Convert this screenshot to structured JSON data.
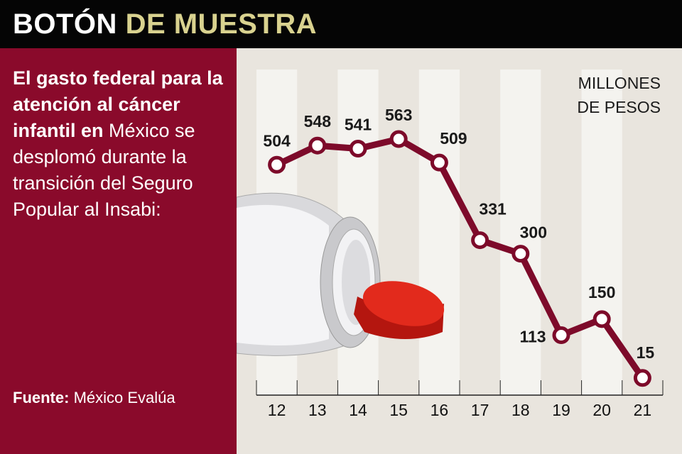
{
  "header": {
    "title_part1": "BOTÓN",
    "title_part2": "DE MUESTRA"
  },
  "intro": {
    "bold": "El gasto federal para la atención al cáncer infantil en",
    "regular": " México se desplomó durante la transición del Seguro Popular al Insabi:"
  },
  "source": {
    "label": "Fuente:",
    "value": " México Evalúa"
  },
  "colors": {
    "maroon": "#8a0a2b",
    "accent": "#d9d28f",
    "background": "#e9e5de"
  },
  "chart_data": {
    "type": "line",
    "unit_line1": "MILLONES",
    "unit_line2": "DE PESOS",
    "categories": [
      "12",
      "13",
      "14",
      "15",
      "16",
      "17",
      "18",
      "19",
      "20",
      "21"
    ],
    "values": [
      504,
      548,
      541,
      563,
      509,
      331,
      300,
      113,
      150,
      15
    ],
    "ylim": [
      0,
      563
    ]
  }
}
